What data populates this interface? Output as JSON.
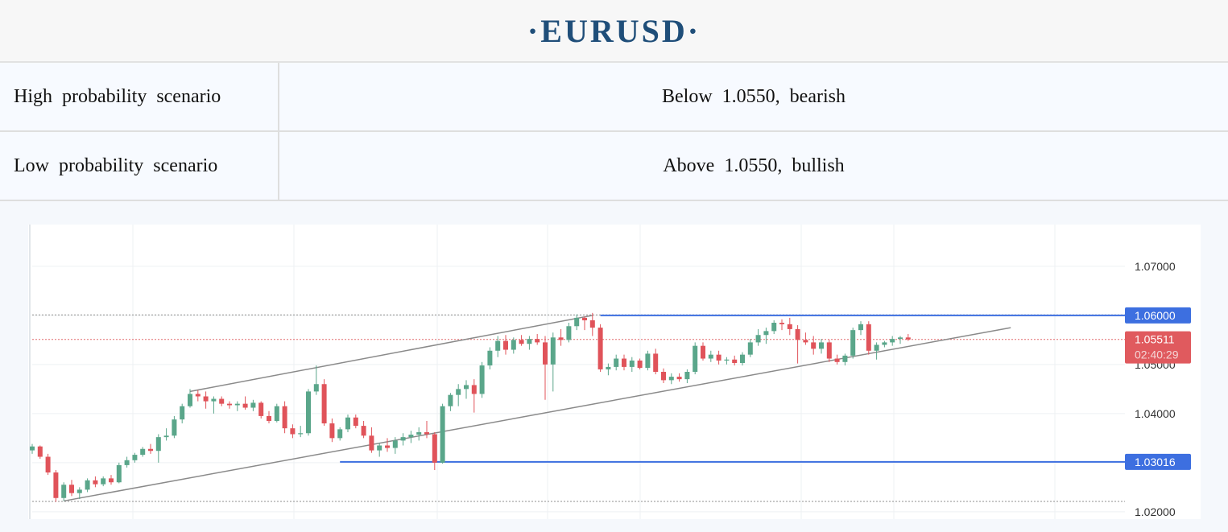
{
  "header": {
    "title": "·EURUSD·"
  },
  "scenarios": [
    {
      "label": "High probability scenario",
      "value": "Below 1.0550, bearish"
    },
    {
      "label": "Low probability scenario",
      "value": "Above 1.0550, bullish"
    }
  ],
  "colors": {
    "up": "#5aa68a",
    "down": "#e0535a",
    "level_line": "#3d6fe0",
    "price_tag": "#e05a5e",
    "trend_line": "#8a8a8a",
    "title": "#1f4e79"
  },
  "chart_data": {
    "type": "candlestick",
    "symbol": "EURUSD",
    "ylim": [
      1.0185,
      1.0785
    ],
    "yticks": [
      "1.07000",
      "1.05000",
      "1.04000",
      "1.02000"
    ],
    "levels": [
      {
        "label": "1.06000",
        "value": 1.06,
        "kind": "resistance"
      },
      {
        "label": "1.03016",
        "value": 1.03016,
        "kind": "support"
      }
    ],
    "current_price": {
      "label": "1.05511",
      "value": 1.05511,
      "countdown": "02:40:29"
    },
    "dotted_levels": [
      1.0601,
      1.0551,
      1.0221
    ],
    "channel": {
      "upper": [
        {
          "i": 20,
          "v": 1.0445
        },
        {
          "i": 71,
          "v": 1.06
        }
      ],
      "lower": [
        {
          "i": 4,
          "v": 1.0222
        },
        {
          "i": 124,
          "v": 1.0575
        }
      ]
    },
    "support_from_index": 39,
    "resistance_from_index": 72,
    "candles": [
      [
        1.0325,
        1.0338,
        1.0318,
        1.0333
      ],
      [
        1.0333,
        1.0335,
        1.0308,
        1.0312
      ],
      [
        1.0312,
        1.0318,
        1.0275,
        1.028
      ],
      [
        1.028,
        1.0285,
        1.022,
        1.0228
      ],
      [
        1.0228,
        1.026,
        1.0222,
        1.0255
      ],
      [
        1.0255,
        1.0265,
        1.0232,
        1.0238
      ],
      [
        1.0238,
        1.025,
        1.0226,
        1.0245
      ],
      [
        1.0245,
        1.0268,
        1.024,
        1.0264
      ],
      [
        1.0264,
        1.0272,
        1.025,
        1.0256
      ],
      [
        1.0256,
        1.0272,
        1.0252,
        1.0268
      ],
      [
        1.0268,
        1.0275,
        1.0255,
        1.026
      ],
      [
        1.026,
        1.03,
        1.0258,
        1.0295
      ],
      [
        1.0295,
        1.0312,
        1.029,
        1.0305
      ],
      [
        1.0305,
        1.032,
        1.03,
        1.0316
      ],
      [
        1.0316,
        1.0332,
        1.0312,
        1.0328
      ],
      [
        1.0328,
        1.0338,
        1.0318,
        1.0324
      ],
      [
        1.0324,
        1.0358,
        1.03,
        1.0352
      ],
      [
        1.0352,
        1.037,
        1.0345,
        1.0355
      ],
      [
        1.0355,
        1.0395,
        1.035,
        1.0388
      ],
      [
        1.0388,
        1.042,
        1.038,
        1.0415
      ],
      [
        1.0415,
        1.045,
        1.0412,
        1.044
      ],
      [
        1.044,
        1.0448,
        1.0425,
        1.0435
      ],
      [
        1.0435,
        1.0445,
        1.041,
        1.0425
      ],
      [
        1.0425,
        1.0435,
        1.04,
        1.043
      ],
      [
        1.043,
        1.0435,
        1.0415,
        1.042
      ],
      [
        1.042,
        1.0425,
        1.041,
        1.0417
      ],
      [
        1.0417,
        1.0425,
        1.0405,
        1.042
      ],
      [
        1.042,
        1.0435,
        1.0408,
        1.0412
      ],
      [
        1.0412,
        1.0428,
        1.0405,
        1.0422
      ],
      [
        1.0422,
        1.0425,
        1.039,
        1.0395
      ],
      [
        1.0395,
        1.0405,
        1.038,
        1.0385
      ],
      [
        1.0385,
        1.042,
        1.0382,
        1.0415
      ],
      [
        1.0415,
        1.0425,
        1.036,
        1.037
      ],
      [
        1.037,
        1.0378,
        1.035,
        1.0358
      ],
      [
        1.0358,
        1.0375,
        1.0352,
        1.036
      ],
      [
        1.036,
        1.045,
        1.0355,
        1.0445
      ],
      [
        1.0445,
        1.0498,
        1.0438,
        1.046
      ],
      [
        1.046,
        1.047,
        1.0375,
        1.038
      ],
      [
        1.038,
        1.039,
        1.0342,
        1.035
      ],
      [
        1.035,
        1.0372,
        1.0345,
        1.0368
      ],
      [
        1.0368,
        1.0398,
        1.0362,
        1.0392
      ],
      [
        1.0392,
        1.0398,
        1.037,
        1.0375
      ],
      [
        1.0375,
        1.0385,
        1.035,
        1.0355
      ],
      [
        1.0355,
        1.0372,
        1.032,
        1.0325
      ],
      [
        1.0325,
        1.034,
        1.0312,
        1.0335
      ],
      [
        1.0335,
        1.035,
        1.0322,
        1.033
      ],
      [
        1.033,
        1.0352,
        1.0318,
        1.0345
      ],
      [
        1.0345,
        1.036,
        1.0335,
        1.0352
      ],
      [
        1.0352,
        1.0365,
        1.034,
        1.0357
      ],
      [
        1.0357,
        1.0372,
        1.0345,
        1.0362
      ],
      [
        1.0362,
        1.0385,
        1.035,
        1.0358
      ],
      [
        1.0358,
        1.0362,
        1.0285,
        1.03
      ],
      [
        1.03,
        1.042,
        1.0298,
        1.0415
      ],
      [
        1.0415,
        1.0442,
        1.0405,
        1.0438
      ],
      [
        1.0438,
        1.046,
        1.0415,
        1.045
      ],
      [
        1.045,
        1.0468,
        1.043,
        1.0458
      ],
      [
        1.0458,
        1.047,
        1.0402,
        1.044
      ],
      [
        1.044,
        1.0505,
        1.0432,
        1.0498
      ],
      [
        1.0498,
        1.0535,
        1.049,
        1.0528
      ],
      [
        1.0528,
        1.0558,
        1.0515,
        1.0548
      ],
      [
        1.0548,
        1.056,
        1.052,
        1.053
      ],
      [
        1.053,
        1.0555,
        1.0522,
        1.055
      ],
      [
        1.055,
        1.056,
        1.0538,
        1.0542
      ],
      [
        1.0542,
        1.0558,
        1.053,
        1.0552
      ],
      [
        1.0552,
        1.0562,
        1.054,
        1.0545
      ],
      [
        1.0545,
        1.0558,
        1.0428,
        1.05
      ],
      [
        1.05,
        1.0565,
        1.0445,
        1.0555
      ],
      [
        1.0555,
        1.0572,
        1.0538,
        1.055
      ],
      [
        1.055,
        1.0585,
        1.0545,
        1.0578
      ],
      [
        1.0578,
        1.0602,
        1.057,
        1.0595
      ],
      [
        1.0595,
        1.0598,
        1.057,
        1.059
      ],
      [
        1.059,
        1.0605,
        1.0558,
        1.0575
      ],
      [
        1.0575,
        1.0582,
        1.0485,
        1.049
      ],
      [
        1.049,
        1.0502,
        1.0478,
        1.0495
      ],
      [
        1.0495,
        1.052,
        1.0488,
        1.0512
      ],
      [
        1.0512,
        1.052,
        1.0488,
        1.0495
      ],
      [
        1.0495,
        1.0515,
        1.0485,
        1.0508
      ],
      [
        1.0508,
        1.0512,
        1.049,
        1.0493
      ],
      [
        1.0493,
        1.0528,
        1.0488,
        1.0522
      ],
      [
        1.0522,
        1.0532,
        1.048,
        1.0485
      ],
      [
        1.0485,
        1.0492,
        1.0462,
        1.0468
      ],
      [
        1.0468,
        1.0482,
        1.046,
        1.0475
      ],
      [
        1.0475,
        1.0482,
        1.0465,
        1.047
      ],
      [
        1.047,
        1.049,
        1.0462,
        1.0485
      ],
      [
        1.0485,
        1.0545,
        1.048,
        1.0538
      ],
      [
        1.0538,
        1.0545,
        1.0508,
        1.0512
      ],
      [
        1.0512,
        1.0528,
        1.0505,
        1.052
      ],
      [
        1.052,
        1.0528,
        1.05,
        1.0508
      ],
      [
        1.0508,
        1.0515,
        1.05,
        1.051
      ],
      [
        1.051,
        1.0518,
        1.0498,
        1.0503
      ],
      [
        1.0503,
        1.0525,
        1.0498,
        1.052
      ],
      [
        1.052,
        1.0552,
        1.0515,
        1.0545
      ],
      [
        1.0545,
        1.0572,
        1.0538,
        1.056
      ],
      [
        1.056,
        1.0575,
        1.0542,
        1.0568
      ],
      [
        1.0568,
        1.059,
        1.0562,
        1.0585
      ],
      [
        1.0585,
        1.0592,
        1.057,
        1.0582
      ],
      [
        1.0582,
        1.0595,
        1.056,
        1.0572
      ],
      [
        1.0572,
        1.058,
        1.0502,
        1.055
      ],
      [
        1.055,
        1.0565,
        1.054,
        1.0545
      ],
      [
        1.0545,
        1.0558,
        1.052,
        1.0532
      ],
      [
        1.0532,
        1.0552,
        1.0522,
        1.0545
      ],
      [
        1.0545,
        1.055,
        1.0505,
        1.0512
      ],
      [
        1.0512,
        1.052,
        1.05,
        1.0505
      ],
      [
        1.0505,
        1.0522,
        1.0498,
        1.0518
      ],
      [
        1.0518,
        1.0575,
        1.0512,
        1.057
      ],
      [
        1.057,
        1.0588,
        1.056,
        1.0582
      ],
      [
        1.0582,
        1.0588,
        1.052,
        1.0528
      ],
      [
        1.0528,
        1.0545,
        1.051,
        1.054
      ],
      [
        1.054,
        1.0548,
        1.0535,
        1.0545
      ],
      [
        1.0545,
        1.0558,
        1.0538,
        1.0552
      ],
      [
        1.0552,
        1.0558,
        1.0542,
        1.0555
      ],
      [
        1.0555,
        1.0562,
        1.0548,
        1.0551
      ]
    ]
  }
}
